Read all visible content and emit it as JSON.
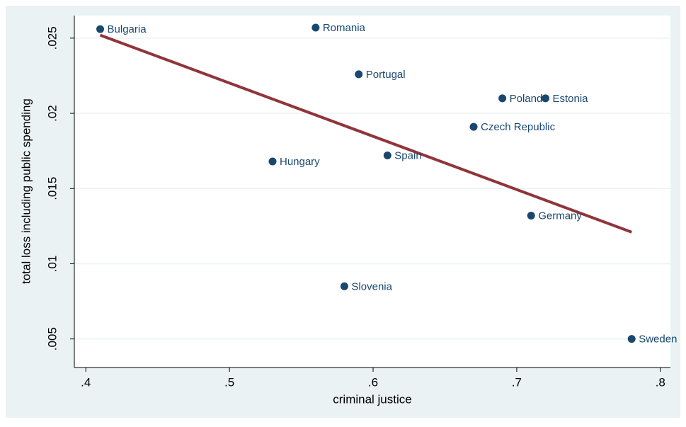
{
  "chart_data": {
    "type": "scatter",
    "x_label": "criminal justice",
    "y_label": "total loss including public spending",
    "labels": [
      "Bulgaria",
      "Romania",
      "Portugal",
      "Poland",
      "Estonia",
      "Czech Republic",
      "Spain",
      "Hungary",
      "Germany",
      "Slovenia",
      "Sweden"
    ],
    "x": [
      0.41,
      0.56,
      0.59,
      0.69,
      0.72,
      0.67,
      0.61,
      0.53,
      0.71,
      0.58,
      0.78
    ],
    "values": [
      0.0256,
      0.0257,
      0.0226,
      0.021,
      0.021,
      0.0191,
      0.0172,
      0.0168,
      0.0132,
      0.0085,
      0.005
    ],
    "color": "#1a476f",
    "fit": {
      "x": [
        0.41,
        0.78
      ],
      "values": [
        0.0252,
        0.0121
      ],
      "color": "#90353b"
    },
    "xlim": [
      0.392,
      0.807
    ],
    "ylim": [
      0.0031,
      0.0265
    ],
    "xticks": [
      {
        "value": 0.4,
        "label": ".4"
      },
      {
        "value": 0.5,
        "label": ".5"
      },
      {
        "value": 0.6,
        "label": ".6"
      },
      {
        "value": 0.7,
        "label": ".7"
      },
      {
        "value": 0.8,
        "label": ".8"
      }
    ],
    "yticks": [
      {
        "value": 0.005,
        "label": ".005"
      },
      {
        "value": 0.01,
        "label": ".01"
      },
      {
        "value": 0.015,
        "label": ".015"
      },
      {
        "value": 0.02,
        "label": ".02"
      },
      {
        "value": 0.025,
        "label": ".025"
      }
    ],
    "grid": true
  }
}
